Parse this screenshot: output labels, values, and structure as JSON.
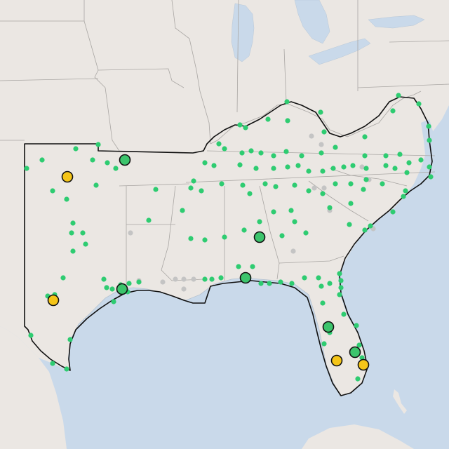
{
  "map": {
    "colors": {
      "land": "#ebe7e3",
      "water": "#c9d9ea",
      "outline": "#111111",
      "site_small_green": "#2ecc71",
      "site_small_gray": "#c4c4c4",
      "site_large_green": "#3cc46c",
      "site_large_yellow": "#f5c518"
    },
    "markers": {
      "small_green_icon": "dot-icon",
      "small_gray_icon": "dot-icon",
      "large_green_icon": "circle-icon",
      "large_yellow_icon": "circle-icon"
    }
  }
}
